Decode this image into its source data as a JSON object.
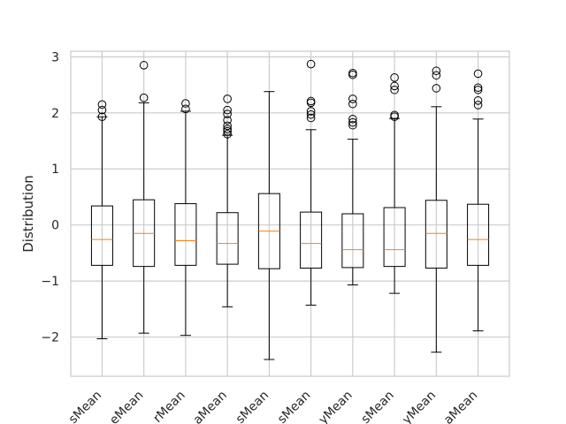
{
  "chart_data": {
    "type": "box",
    "title": "",
    "xlabel": "",
    "ylabel": "Distribution",
    "ylim": [
      -2.7,
      3.1
    ],
    "yticks": [
      -2,
      -1,
      0,
      1,
      2,
      3
    ],
    "ytick_labels": [
      "−2",
      "−1",
      "0",
      "1",
      "2",
      "3"
    ],
    "grid": true,
    "categories": [
      "sMean",
      "eMean",
      "rMean",
      "aMean",
      "sMean",
      "sMean",
      "yMean",
      "sMean",
      "yMean",
      "aMean"
    ],
    "boxes": [
      {
        "whisker_low": -2.03,
        "q1": -0.72,
        "median": -0.26,
        "q3": 0.34,
        "whisker_high": 1.93,
        "outliers": [
          1.93,
          2.05,
          2.15
        ]
      },
      {
        "whisker_low": -1.93,
        "q1": -0.74,
        "median": -0.15,
        "q3": 0.45,
        "whisker_high": 2.18,
        "outliers": [
          2.27,
          2.85
        ]
      },
      {
        "whisker_low": -1.97,
        "q1": -0.72,
        "median": -0.28,
        "q3": 0.38,
        "whisker_high": 2.03,
        "outliers": [
          2.07,
          2.17
        ]
      },
      {
        "whisker_low": -1.46,
        "q1": -0.7,
        "median": -0.33,
        "q3": 0.22,
        "whisker_high": 1.6,
        "outliers": [
          1.62,
          1.67,
          1.71,
          1.77,
          1.87,
          1.98,
          2.05,
          2.25
        ]
      },
      {
        "whisker_low": -2.4,
        "q1": -0.78,
        "median": -0.11,
        "q3": 0.56,
        "whisker_high": 2.38,
        "outliers": []
      },
      {
        "whisker_low": -1.43,
        "q1": -0.77,
        "median": -0.33,
        "q3": 0.23,
        "whisker_high": 1.7,
        "outliers": [
          1.91,
          1.97,
          2.03,
          2.18,
          2.21,
          2.87
        ]
      },
      {
        "whisker_low": -1.07,
        "q1": -0.76,
        "median": -0.44,
        "q3": 0.2,
        "whisker_high": 1.53,
        "outliers": [
          1.78,
          1.83,
          1.89,
          2.16,
          2.25,
          2.68,
          2.71
        ]
      },
      {
        "whisker_low": -1.22,
        "q1": -0.74,
        "median": -0.44,
        "q3": 0.31,
        "whisker_high": 1.9,
        "outliers": [
          1.93,
          1.96,
          2.41,
          2.48,
          2.63
        ]
      },
      {
        "whisker_low": -2.27,
        "q1": -0.77,
        "median": -0.15,
        "q3": 0.44,
        "whisker_high": 2.11,
        "outliers": [
          2.44,
          2.67,
          2.75
        ]
      },
      {
        "whisker_low": -1.89,
        "q1": -0.72,
        "median": -0.26,
        "q3": 0.37,
        "whisker_high": 1.89,
        "outliers": [
          2.14,
          2.22,
          2.41,
          2.45,
          2.7
        ]
      }
    ],
    "colors": {
      "box": "#000000",
      "median": "#ff7f0e",
      "grid": "#cccccc",
      "frame": "#cccccc",
      "text": "#262626"
    }
  }
}
